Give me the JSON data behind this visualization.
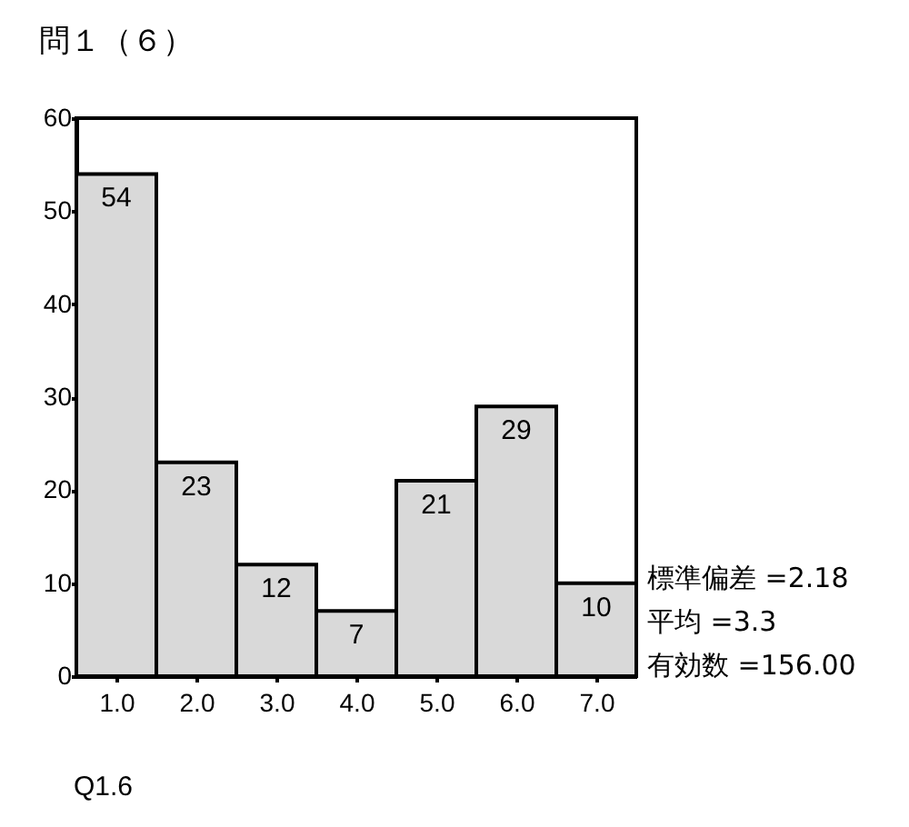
{
  "chart_data": {
    "type": "histogram",
    "title": "問１（６）",
    "xlabel": "Q1.6",
    "bins": [
      0.5,
      1.5,
      2.5,
      3.5,
      4.5,
      5.5,
      6.5,
      7.5
    ],
    "values": [
      54,
      23,
      12,
      7,
      21,
      29,
      10
    ],
    "color": "#d9d9d9",
    "xlim": [
      0.5,
      7.5
    ],
    "xticks": [
      {
        "value": 1,
        "label": "1.0"
      },
      {
        "value": 2,
        "label": "2.0"
      },
      {
        "value": 3,
        "label": "3.0"
      },
      {
        "value": 4,
        "label": "4.0"
      },
      {
        "value": 5,
        "label": "5.0"
      },
      {
        "value": 6,
        "label": "6.0"
      },
      {
        "value": 7,
        "label": "7.0"
      }
    ],
    "ylim": [
      0,
      60
    ],
    "yticks": [
      0,
      10,
      20,
      30,
      40,
      50,
      60
    ],
    "data_labels": true,
    "annotations": [
      "標準偏差 =2.18",
      "平均 =3.3",
      "有効数 =156.00"
    ]
  }
}
